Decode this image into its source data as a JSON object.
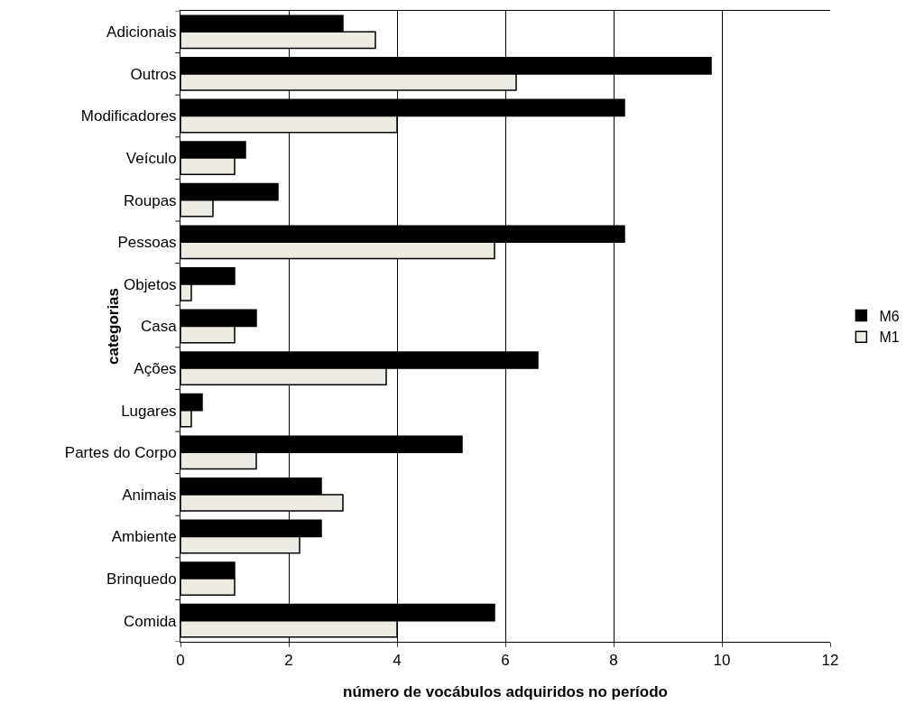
{
  "chart_data": {
    "type": "bar",
    "orientation": "horizontal",
    "xlabel": "número de vocábulos adquiridos no período",
    "ylabel": "categorias",
    "categories": [
      "Adicionais",
      "Outros",
      "Modificadores",
      "Veículo",
      "Roupas",
      "Pessoas",
      "Objetos",
      "Casa",
      "Ações",
      "Lugares",
      "Partes do Corpo",
      "Animais",
      "Ambiente",
      "Brinquedo",
      "Comida"
    ],
    "series": [
      {
        "name": "M6",
        "color": "#000000",
        "values": [
          3.0,
          9.8,
          8.2,
          1.2,
          1.8,
          8.2,
          1.0,
          1.4,
          6.6,
          0.4,
          5.2,
          2.6,
          2.6,
          1.0,
          5.8
        ]
      },
      {
        "name": "M1",
        "color": "#eeebe2",
        "values": [
          3.6,
          6.2,
          4.0,
          1.0,
          0.6,
          5.8,
          0.2,
          1.0,
          3.8,
          0.2,
          1.4,
          3.0,
          2.2,
          1.0,
          4.0
        ]
      }
    ],
    "xlim": [
      0,
      12
    ],
    "xticks": [
      0,
      2,
      4,
      6,
      8,
      10,
      12
    ],
    "grid": "x",
    "legend": "right"
  }
}
